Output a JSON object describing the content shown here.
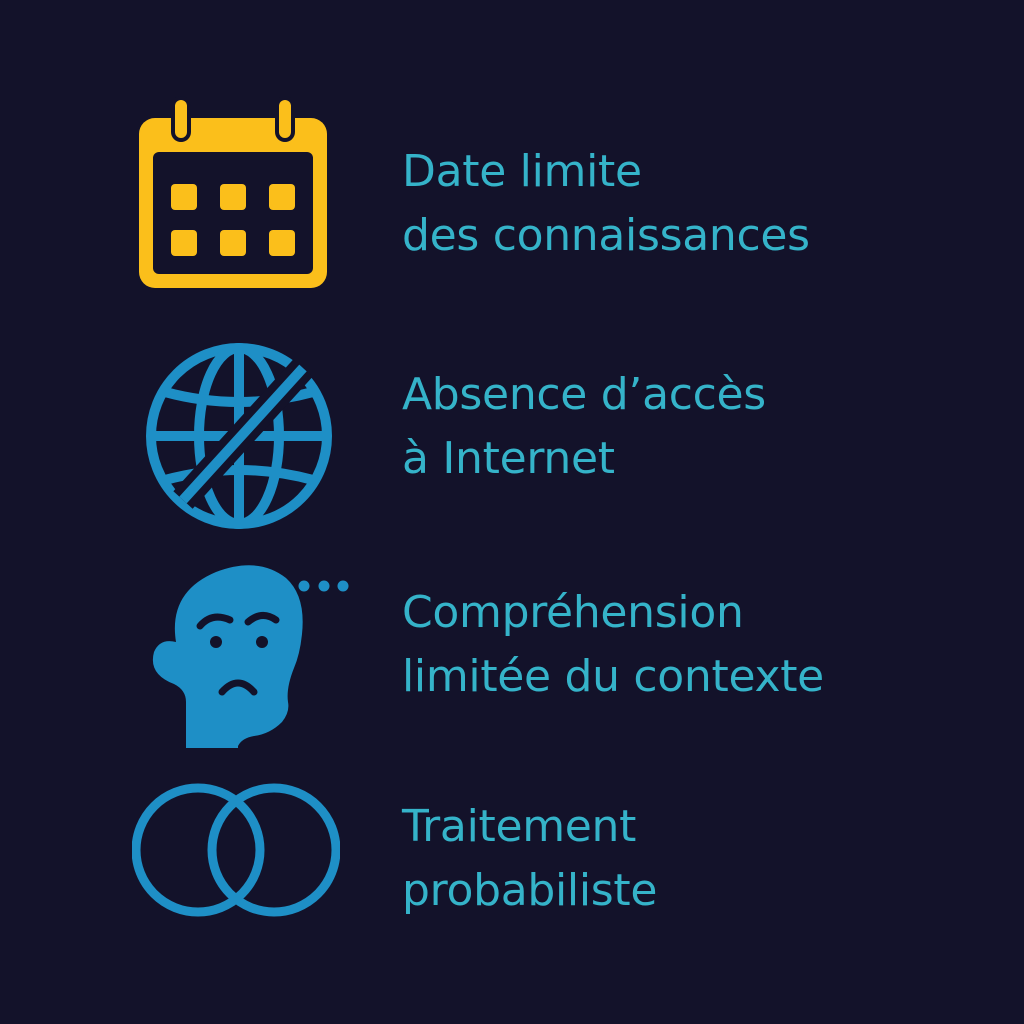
{
  "colors": {
    "background": "#13122a",
    "text": "#35b3c9",
    "calendar": "#fbbf1b",
    "icon_blue": "#1e8fc6"
  },
  "items": [
    {
      "icon": "calendar-icon",
      "line1": "Date limite",
      "line2": "des connaissances"
    },
    {
      "icon": "globe-no-internet-icon",
      "line1": "Absence d’accès",
      "line2": "à Internet"
    },
    {
      "icon": "confused-head-icon",
      "line1": "Compréhension",
      "line2": "limitée du contexte"
    },
    {
      "icon": "overlapping-circles-icon",
      "line1": "Traitement",
      "line2": "probabiliste"
    }
  ]
}
